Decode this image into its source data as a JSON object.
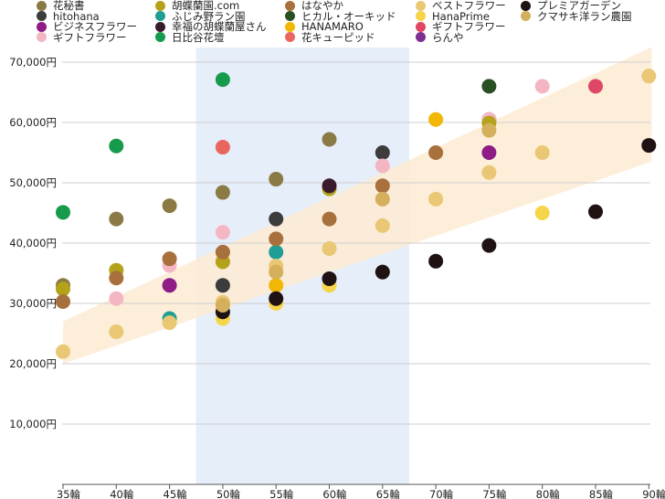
{
  "chart_data": {
    "type": "scatter",
    "title": "",
    "xlabel": "",
    "ylabel": "",
    "categories": [
      "35輪",
      "40輪",
      "45輪",
      "50輪",
      "55輪",
      "60輪",
      "65輪",
      "70輪",
      "75輪",
      "80輪",
      "85輪",
      "90輪"
    ],
    "y_ticks": [
      "10,000円",
      "20,000円",
      "30,000円",
      "40,000円",
      "50,000円",
      "60,000円",
      "70,000円"
    ],
    "ylim": [
      0,
      70000
    ],
    "grid": true,
    "legend_position": "top",
    "highlight_band": {
      "from": "50輪",
      "to": "65輪",
      "color": "#e6eefa"
    },
    "trend_band": {
      "from": "35輪",
      "to": "90輪",
      "lower": [
        20000,
        53500
      ],
      "upper": [
        27000,
        72500
      ],
      "color": "#fdebd2"
    },
    "series": [
      {
        "name": "花秘書",
        "color": "#8c7a45",
        "points": [
          [
            "35輪",
            33000
          ],
          [
            "40輪",
            44000
          ],
          [
            "45輪",
            46200
          ],
          [
            "50輪",
            48400
          ],
          [
            "55輪",
            50600
          ],
          [
            "60輪",
            57200
          ]
        ]
      },
      {
        "name": "hitohana",
        "color": "#3c3c3c",
        "points": [
          [
            "50輪",
            33000
          ],
          [
            "55輪",
            44000
          ],
          [
            "65輪",
            55000
          ]
        ]
      },
      {
        "name": "ビジネスフラワー",
        "color": "#8e1b86",
        "points": [
          [
            "45輪",
            33000
          ],
          [
            "75輪",
            55000
          ],
          [
            "75輪",
            60500
          ]
        ]
      },
      {
        "name": "ギフトフラワー",
        "color": "#f4b6c2",
        "points": [
          [
            "40輪",
            30800
          ],
          [
            "45輪",
            36300
          ],
          [
            "50輪",
            41800
          ],
          [
            "65輪",
            52800
          ],
          [
            "75輪",
            60500
          ],
          [
            "80輪",
            66000
          ]
        ]
      },
      {
        "name": "胡蝶蘭園.com",
        "color": "#b3a21a",
        "points": [
          [
            "35輪",
            32400
          ],
          [
            "40輪",
            35500
          ],
          [
            "50輪",
            36900
          ],
          [
            "60輪",
            49000
          ],
          [
            "75輪",
            59900
          ]
        ]
      },
      {
        "name": "ふじみ野ラン園",
        "color": "#1f9e96",
        "points": [
          [
            "45輪",
            27500
          ],
          [
            "55輪",
            38500
          ]
        ]
      },
      {
        "name": "幸福の胡蝶蘭屋さん",
        "color": "#3a1b2b",
        "points": [
          [
            "60輪",
            49500
          ]
        ]
      },
      {
        "name": "日比谷花壇",
        "color": "#169a4c",
        "points": [
          [
            "35輪",
            45100
          ],
          [
            "40輪",
            56100
          ],
          [
            "50輪",
            67100
          ]
        ]
      },
      {
        "name": "はなやか",
        "color": "#a8703d",
        "points": [
          [
            "35輪",
            30300
          ],
          [
            "40輪",
            34200
          ],
          [
            "45輪",
            37400
          ],
          [
            "50輪",
            38500
          ],
          [
            "55輪",
            40700
          ],
          [
            "60輪",
            44000
          ],
          [
            "65輪",
            49500
          ],
          [
            "70輪",
            55000
          ]
        ]
      },
      {
        "name": "ヒカル・オーキッド",
        "color": "#2b4f25",
        "points": [
          [
            "75輪",
            66000
          ]
        ]
      },
      {
        "name": "HANAMARO",
        "color": "#f2b705",
        "points": [
          [
            "55輪",
            33000
          ],
          [
            "70輪",
            60500
          ]
        ]
      },
      {
        "name": "花キューピッド",
        "color": "#e8665e",
        "points": [
          [
            "50輪",
            55900
          ]
        ]
      },
      {
        "name": "ベストフラワー",
        "color": "#e9c774",
        "points": [
          [
            "35輪",
            22000
          ],
          [
            "40輪",
            25300
          ],
          [
            "45輪",
            26800
          ],
          [
            "50輪",
            30200
          ],
          [
            "55輪",
            36200
          ],
          [
            "60輪",
            39100
          ],
          [
            "65輪",
            42900
          ],
          [
            "70輪",
            47300
          ],
          [
            "75輪",
            51700
          ],
          [
            "80輪",
            55000
          ],
          [
            "90輪",
            67700
          ]
        ]
      },
      {
        "name": "HanaPrime",
        "color": "#f6d54a",
        "points": [
          [
            "50輪",
            27500
          ],
          [
            "55輪",
            30000
          ],
          [
            "60輪",
            33000
          ],
          [
            "80輪",
            45000
          ]
        ]
      },
      {
        "name": "ギフトフラワー",
        "color": "#e04766",
        "points": [
          [
            "85輪",
            66000
          ]
        ]
      },
      {
        "name": "らんや",
        "color": "#7e2f92",
        "points": []
      },
      {
        "name": "プレミアガーデン",
        "color": "#1f1212",
        "points": [
          [
            "50輪",
            28600
          ],
          [
            "55輪",
            30800
          ],
          [
            "60輪",
            34100
          ],
          [
            "65輪",
            35200
          ],
          [
            "70輪",
            37000
          ],
          [
            "75輪",
            39600
          ],
          [
            "85輪",
            45200
          ],
          [
            "90輪",
            56200
          ]
        ]
      },
      {
        "name": "クマサキ洋ラン農園",
        "color": "#d4b05c",
        "points": [
          [
            "50輪",
            29700
          ],
          [
            "55輪",
            35200
          ],
          [
            "65輪",
            47300
          ],
          [
            "75輪",
            58700
          ]
        ]
      }
    ]
  }
}
